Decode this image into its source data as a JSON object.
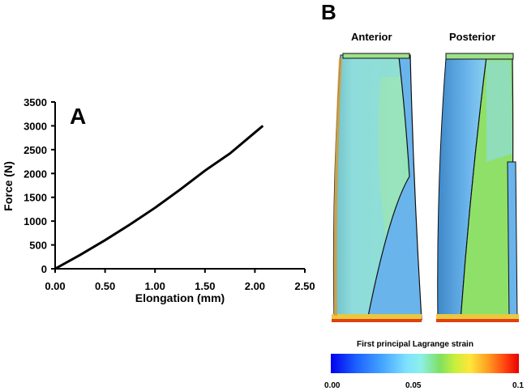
{
  "panel_labels": {
    "a": "A",
    "b": "B"
  },
  "views": {
    "anterior": "Anterior",
    "posterior": "Posterior"
  },
  "colorbar": {
    "title": "First principal Lagrange strain",
    "min_label": "0.00",
    "mid_label": "0.05",
    "max_label": "0.1",
    "colors": [
      "#0000ee",
      "#47a8ff",
      "#8cf0e8",
      "#7fe060",
      "#ffe63a",
      "#ff9a20",
      "#e80000"
    ]
  },
  "model_colors": {
    "strand_cyan": "#8fdcdc",
    "strand_blue": "#5ea8e6",
    "strand_green": "#8fe069",
    "edge_yellow": "#e8c840",
    "edge_red": "#e04010"
  },
  "chart_data": {
    "type": "line",
    "title": "",
    "xlabel": "Elongation (mm)",
    "ylabel": "Force (N)",
    "xlim": [
      0,
      2.5
    ],
    "ylim": [
      0,
      3500
    ],
    "xticks": [
      "0.00",
      "0.50",
      "1.00",
      "1.50",
      "2.00",
      "2.50"
    ],
    "xtick_values": [
      0,
      0.5,
      1.0,
      1.5,
      2.0,
      2.5
    ],
    "yticks": [
      "0",
      "500",
      "1000",
      "1500",
      "2000",
      "2500",
      "3000",
      "3500"
    ],
    "ytick_values": [
      0,
      500,
      1000,
      1500,
      2000,
      2500,
      3000,
      3500
    ],
    "grid": false,
    "series": [
      {
        "x": [
          0,
          0.25,
          0.5,
          0.75,
          1.0,
          1.25,
          1.5,
          1.75,
          2.0,
          2.08
        ],
        "y": [
          0,
          290,
          600,
          930,
          1280,
          1660,
          2060,
          2420,
          2860,
          3000
        ]
      }
    ]
  }
}
